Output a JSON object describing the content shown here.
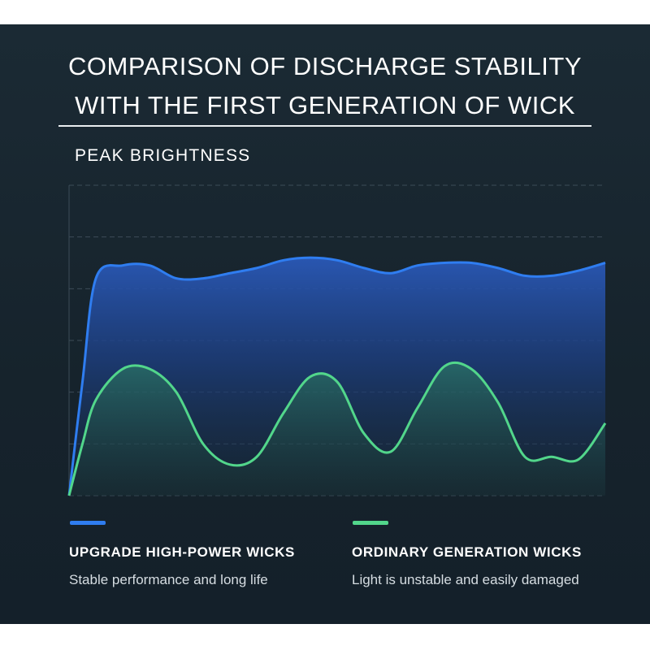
{
  "title_lines": [
    "COMPARISON OF DISCHARGE STABILITY",
    "WITH THE FIRST GENERATION OF WICK"
  ],
  "colors": {
    "upgrade": "#2f7df0",
    "ordinary": "#52d68b",
    "background": "#16232c"
  },
  "chart_data": {
    "type": "line",
    "title": "COMPARISON OF DISCHARGE STABILITY WITH THE FIRST GENERATION OF WICK",
    "ylabel": "PEAK BRIGHTNESS",
    "xlabel": "",
    "ylim": [
      0,
      6
    ],
    "x": [
      0,
      0.5,
      1,
      2,
      3,
      4,
      5,
      6,
      7,
      8,
      9,
      10,
      11,
      12,
      13,
      14,
      15,
      16,
      17,
      18,
      19,
      20
    ],
    "grid": true,
    "series": [
      {
        "name": "UPGRADE HIGH-POWER WICKS",
        "description": "Stable performance and long life",
        "values": [
          0,
          2.2,
          4.2,
          4.45,
          4.45,
          4.2,
          4.2,
          4.3,
          4.4,
          4.55,
          4.6,
          4.55,
          4.4,
          4.3,
          4.45,
          4.5,
          4.5,
          4.4,
          4.25,
          4.25,
          4.35,
          4.5
        ]
      },
      {
        "name": "ORDINARY GENERATION WICKS",
        "description": "Light is unstable and easily damaged",
        "values": [
          0,
          1.0,
          1.85,
          2.45,
          2.45,
          2.0,
          1.0,
          0.6,
          0.75,
          1.6,
          2.3,
          2.2,
          1.2,
          0.85,
          1.7,
          2.5,
          2.45,
          1.8,
          0.75,
          0.75,
          0.7,
          1.4
        ]
      }
    ]
  }
}
